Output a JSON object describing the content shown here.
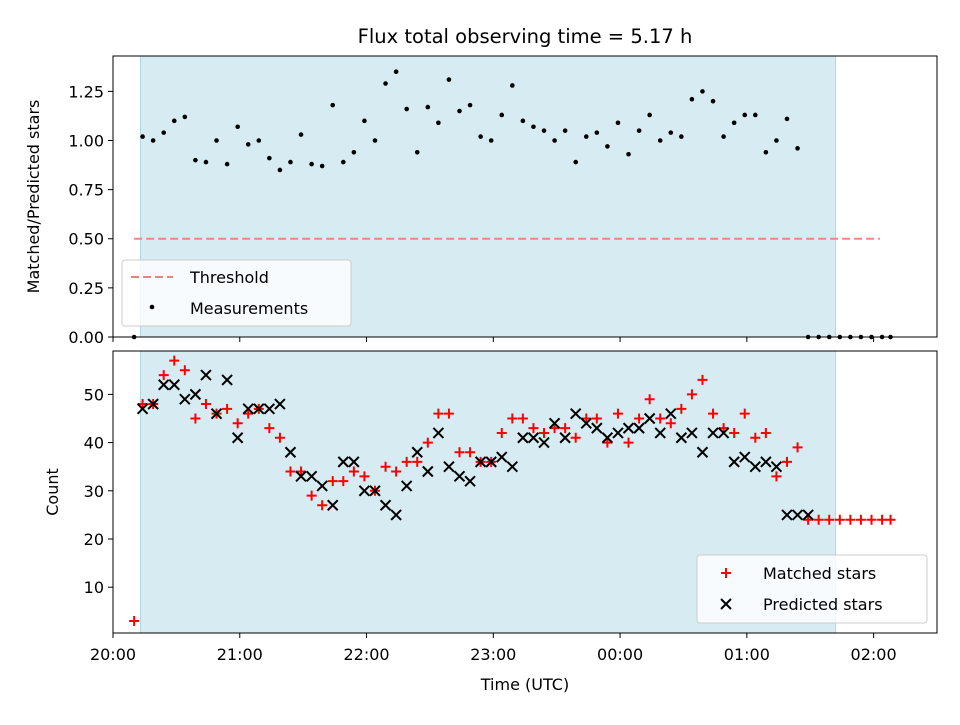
{
  "chart_data": [
    {
      "type": "scatter",
      "title": "Flux total observing time = 5.17 h",
      "ylabel": "Matched/Predicted stars",
      "xlabel": "",
      "x_unit": "time (UTC)",
      "xlim": [
        "20:00",
        "02:30"
      ],
      "ylim": [
        0,
        1.43
      ],
      "yticks": [
        "0.00",
        "0.25",
        "0.50",
        "0.75",
        "1.00",
        "1.25"
      ],
      "ytick_values": [
        0,
        0.25,
        0.5,
        0.75,
        1.0,
        1.25
      ],
      "grid": false,
      "legend_position": "lower-left",
      "observing_window": [
        "20:13",
        "01:42"
      ],
      "threshold": {
        "name": "Threshold",
        "value": 0.5,
        "x_start": "20:10",
        "x_end": "02:03",
        "color": "#f08080",
        "style": "dashed"
      },
      "series": [
        {
          "name": "Measurements",
          "marker": "dot",
          "color": "#000000",
          "x": [
            "20:10",
            "20:14",
            "20:19",
            "20:24",
            "20:29",
            "20:34",
            "20:39",
            "20:44",
            "20:49",
            "20:54",
            "20:59",
            "21:04",
            "21:09",
            "21:14",
            "21:19",
            "21:24",
            "21:29",
            "21:34",
            "21:39",
            "21:44",
            "21:49",
            "21:54",
            "21:59",
            "22:04",
            "22:09",
            "22:14",
            "22:19",
            "22:24",
            "22:29",
            "22:34",
            "22:39",
            "22:44",
            "22:49",
            "22:54",
            "22:59",
            "23:04",
            "23:09",
            "23:14",
            "23:19",
            "23:24",
            "23:29",
            "23:34",
            "23:39",
            "23:44",
            "23:49",
            "23:54",
            "23:59",
            "00:04",
            "00:09",
            "00:14",
            "00:19",
            "00:24",
            "00:29",
            "00:34",
            "00:39",
            "00:44",
            "00:49",
            "00:54",
            "00:59",
            "01:04",
            "01:09",
            "01:14",
            "01:19",
            "01:24",
            "01:29",
            "01:34",
            "01:39",
            "01:44",
            "01:49",
            "01:54",
            "01:59",
            "02:04",
            "02:08"
          ],
          "y": [
            0.0,
            1.02,
            1.0,
            1.04,
            1.1,
            1.12,
            0.9,
            0.89,
            1.0,
            0.88,
            1.07,
            0.98,
            1.0,
            0.91,
            0.85,
            0.89,
            1.03,
            0.88,
            0.87,
            1.18,
            0.89,
            0.94,
            1.1,
            1.0,
            1.29,
            1.35,
            1.16,
            0.94,
            1.17,
            1.09,
            1.31,
            1.15,
            1.18,
            1.02,
            1.0,
            1.13,
            1.28,
            1.1,
            1.07,
            1.05,
            1.0,
            1.05,
            0.89,
            1.02,
            1.04,
            0.97,
            1.09,
            0.93,
            1.05,
            1.13,
            1.0,
            1.04,
            1.02,
            1.21,
            1.25,
            1.2,
            1.02,
            1.09,
            1.13,
            1.13,
            0.94,
            1.0,
            1.11,
            0.96,
            0.0,
            0.0,
            0.0,
            0.0,
            0.0,
            0.0,
            0.0,
            0.0,
            0.0
          ]
        }
      ]
    },
    {
      "type": "scatter",
      "title": "",
      "ylabel": "Count",
      "xlabel": "Time (UTC)",
      "xlim": [
        "20:00",
        "02:30"
      ],
      "ylim": [
        0.5,
        59
      ],
      "yticks": [
        "10",
        "20",
        "30",
        "40",
        "50"
      ],
      "ytick_values": [
        10,
        20,
        30,
        40,
        50
      ],
      "xticks": [
        "20:00",
        "21:00",
        "22:00",
        "23:00",
        "00:00",
        "01:00",
        "02:00"
      ],
      "grid": false,
      "legend_position": "lower-right",
      "observing_window": [
        "20:13",
        "01:42"
      ],
      "series": [
        {
          "name": "Matched stars",
          "marker": "plus",
          "color": "#ff0000",
          "x": [
            "20:10",
            "20:14",
            "20:19",
            "20:24",
            "20:29",
            "20:34",
            "20:39",
            "20:44",
            "20:49",
            "20:54",
            "20:59",
            "21:04",
            "21:09",
            "21:14",
            "21:19",
            "21:24",
            "21:29",
            "21:34",
            "21:39",
            "21:44",
            "21:49",
            "21:54",
            "21:59",
            "22:04",
            "22:09",
            "22:14",
            "22:19",
            "22:24",
            "22:29",
            "22:34",
            "22:39",
            "22:44",
            "22:49",
            "22:54",
            "22:59",
            "23:04",
            "23:09",
            "23:14",
            "23:19",
            "23:24",
            "23:29",
            "23:34",
            "23:39",
            "23:44",
            "23:49",
            "23:54",
            "23:59",
            "00:04",
            "00:09",
            "00:14",
            "00:19",
            "00:24",
            "00:29",
            "00:34",
            "00:39",
            "00:44",
            "00:49",
            "00:54",
            "00:59",
            "01:04",
            "01:09",
            "01:14",
            "01:19",
            "01:24",
            "01:29",
            "01:34",
            "01:39",
            "01:44",
            "01:49",
            "01:54",
            "01:59",
            "02:04",
            "02:08"
          ],
          "y": [
            3,
            48,
            48,
            54,
            57,
            55,
            45,
            48,
            46,
            47,
            44,
            46,
            47,
            43,
            41,
            34,
            34,
            29,
            27,
            32,
            32,
            34,
            33,
            30,
            35,
            34,
            36,
            36,
            40,
            46,
            46,
            38,
            38,
            36,
            36,
            42,
            45,
            45,
            43,
            42,
            43,
            43,
            41,
            45,
            45,
            40,
            46,
            40,
            45,
            49,
            45,
            44,
            47,
            50,
            53,
            46,
            43,
            42,
            46,
            41,
            42,
            33,
            36,
            39,
            24,
            24,
            24,
            24,
            24,
            24,
            24,
            24,
            24
          ]
        },
        {
          "name": "Predicted stars",
          "marker": "x",
          "color": "#000000",
          "x": [
            "20:14",
            "20:19",
            "20:24",
            "20:29",
            "20:34",
            "20:39",
            "20:44",
            "20:49",
            "20:54",
            "20:59",
            "21:04",
            "21:09",
            "21:14",
            "21:19",
            "21:24",
            "21:29",
            "21:34",
            "21:39",
            "21:44",
            "21:49",
            "21:54",
            "21:59",
            "22:04",
            "22:09",
            "22:14",
            "22:19",
            "22:24",
            "22:29",
            "22:34",
            "22:39",
            "22:44",
            "22:49",
            "22:54",
            "22:59",
            "23:04",
            "23:09",
            "23:14",
            "23:19",
            "23:24",
            "23:29",
            "23:34",
            "23:39",
            "23:44",
            "23:49",
            "23:54",
            "23:59",
            "00:04",
            "00:09",
            "00:14",
            "00:19",
            "00:24",
            "00:29",
            "00:34",
            "00:39",
            "00:44",
            "00:49",
            "00:54",
            "00:59",
            "01:04",
            "01:09",
            "01:14",
            "01:19",
            "01:24",
            "01:29"
          ],
          "y": [
            47,
            48,
            52,
            52,
            49,
            50,
            54,
            46,
            53,
            41,
            47,
            47,
            47,
            48,
            38,
            33,
            33,
            31,
            27,
            36,
            36,
            30,
            30,
            27,
            25,
            31,
            38,
            34,
            42,
            35,
            33,
            32,
            36,
            36,
            37,
            35,
            41,
            41,
            40,
            44,
            41,
            46,
            44,
            43,
            41,
            42,
            43,
            43,
            45,
            42,
            46,
            41,
            42,
            38,
            42,
            42,
            36,
            37,
            35,
            36,
            35,
            25,
            25,
            25
          ]
        }
      ]
    }
  ]
}
